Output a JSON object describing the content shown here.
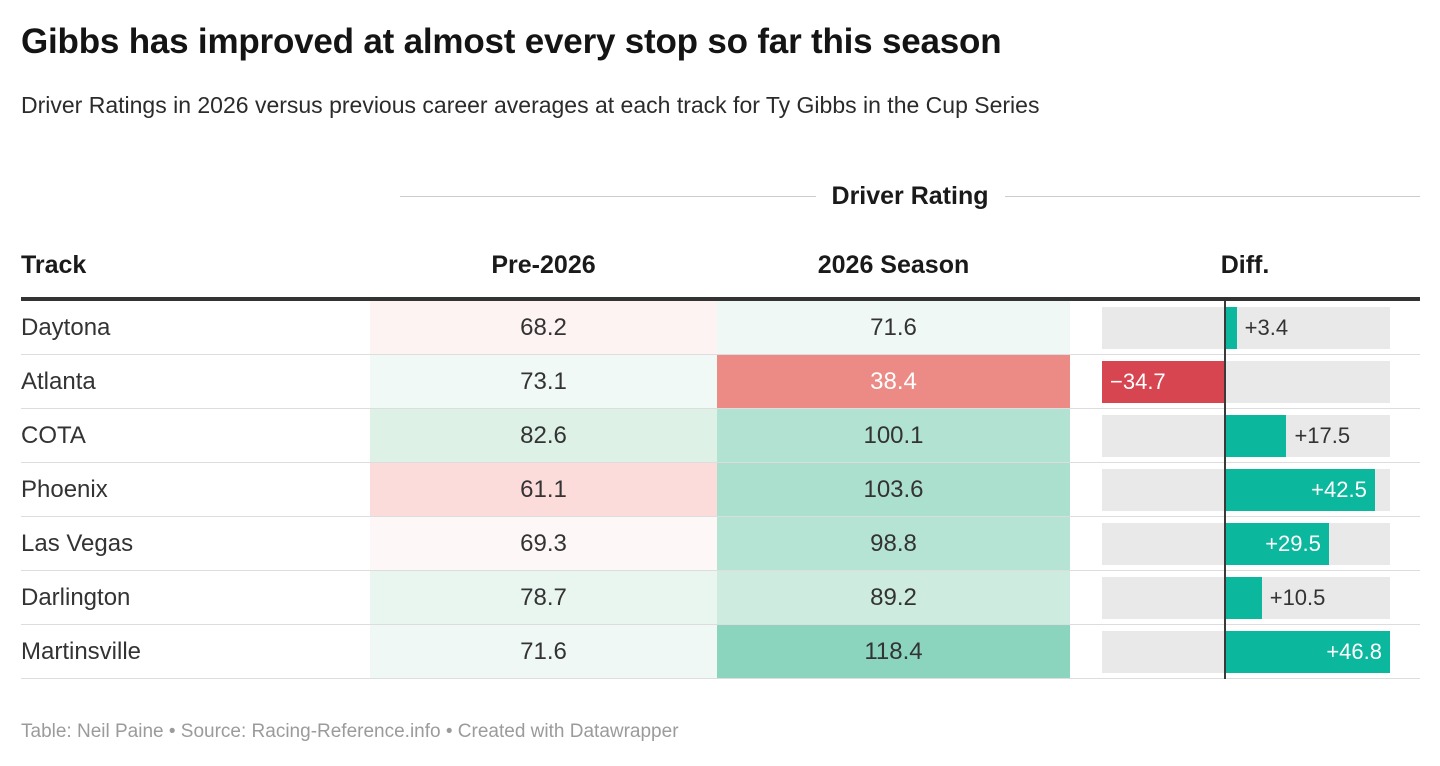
{
  "header": {
    "title": "Gibbs has improved at almost every stop so far this season",
    "subtitle": "Driver Ratings in 2026 versus previous career averages at each track for Ty Gibbs in the Cup Series"
  },
  "table": {
    "span_header": "Driver Rating",
    "columns": {
      "track": "Track",
      "pre": "Pre-2026",
      "season": "2026 Season",
      "diff": "Diff."
    },
    "rows": [
      {
        "track": "Daytona",
        "pre": "68.2",
        "season": "71.6",
        "diff": 3.4,
        "diff_label": "+3.4",
        "pre_bg": "#fdf3f2",
        "season_bg": "#f0f8f5",
        "season_text": "#333333"
      },
      {
        "track": "Atlanta",
        "pre": "73.1",
        "season": "38.4",
        "diff": -34.7,
        "diff_label": "−34.7",
        "pre_bg": "#f0f9f5",
        "season_bg": "#ec8a85",
        "season_text": "#ffffff"
      },
      {
        "track": "COTA",
        "pre": "82.6",
        "season": "100.1",
        "diff": 17.5,
        "diff_label": "+17.5",
        "pre_bg": "#ddf1e7",
        "season_bg": "#b2e2d2",
        "season_text": "#333333"
      },
      {
        "track": "Phoenix",
        "pre": "61.1",
        "season": "103.6",
        "diff": 42.5,
        "diff_label": "+42.5",
        "pre_bg": "#fcdcda",
        "season_bg": "#abdfce",
        "season_text": "#333333"
      },
      {
        "track": "Las Vegas",
        "pre": "69.3",
        "season": "98.8",
        "diff": 29.5,
        "diff_label": "+29.5",
        "pre_bg": "#fdf8f7",
        "season_bg": "#b5e3d4",
        "season_text": "#333333"
      },
      {
        "track": "Darlington",
        "pre": "78.7",
        "season": "89.2",
        "diff": 10.5,
        "diff_label": "+10.5",
        "pre_bg": "#e9f6f0",
        "season_bg": "#cdebde",
        "season_text": "#333333"
      },
      {
        "track": "Martinsville",
        "pre": "71.6",
        "season": "118.4",
        "diff": 46.8,
        "diff_label": "+46.8",
        "pre_bg": "#f0f8f5",
        "season_bg": "#8bd5bf",
        "season_text": "#333333"
      }
    ],
    "diff_axis": {
      "min": -34.7,
      "max": 46.8
    }
  },
  "colors": {
    "positive_bar": "#0bb89d",
    "negative_bar": "#d64550",
    "bar_track_bg": "#e9e9e9",
    "baseline": "#3a3a3a",
    "label_inside": "#ffffff",
    "label_outside": "#333333"
  },
  "footer": {
    "credit": "Table: Neil Paine • Source: Racing-Reference.info • Created with Datawrapper"
  },
  "chart_data": {
    "type": "table",
    "title": "Gibbs has improved at almost every stop so far this season",
    "subtitle": "Driver Ratings in 2026 versus previous career averages at each track for Ty Gibbs in the Cup Series",
    "span_header": "Driver Rating",
    "columns": [
      "Track",
      "Pre-2026",
      "2026 Season",
      "Diff."
    ],
    "rows": [
      {
        "track": "Daytona",
        "pre_2026": 68.2,
        "season_2026": 71.6,
        "diff": 3.4
      },
      {
        "track": "Atlanta",
        "pre_2026": 73.1,
        "season_2026": 38.4,
        "diff": -34.7
      },
      {
        "track": "COTA",
        "pre_2026": 82.6,
        "season_2026": 100.1,
        "diff": 17.5
      },
      {
        "track": "Phoenix",
        "pre_2026": 61.1,
        "season_2026": 103.6,
        "diff": 42.5
      },
      {
        "track": "Las Vegas",
        "pre_2026": 69.3,
        "season_2026": 98.8,
        "diff": 29.5
      },
      {
        "track": "Darlington",
        "pre_2026": 78.7,
        "season_2026": 89.2,
        "diff": 10.5
      },
      {
        "track": "Martinsville",
        "pre_2026": 71.6,
        "season_2026": 118.4,
        "diff": 46.8
      }
    ],
    "diff_bar_axis_range": [
      -34.7,
      46.8
    ],
    "heatmap_columns": [
      "Pre-2026",
      "2026 Season"
    ],
    "legend_position": "none",
    "source_note": "Table: Neil Paine • Source: Racing-Reference.info • Created with Datawrapper"
  }
}
